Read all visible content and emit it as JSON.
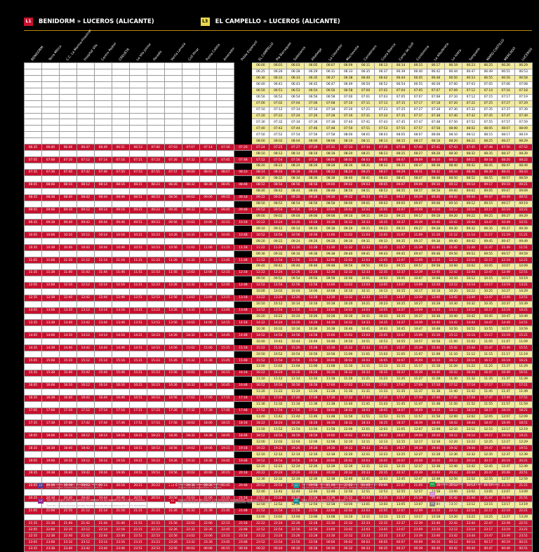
{
  "header": {
    "line1": {
      "badge": "L1",
      "title": "BENIDORM » LUCEROS (ALICANTE)"
    },
    "line3": {
      "badge": "L3",
      "title": "EL CAMPELLO » LUCEROS (ALICANTE)"
    }
  },
  "stations": [
    "BENIDORM",
    "Terra Mítica",
    "C.C. La Marina-Finestrat",
    "Hospital Vila",
    "Centro Pedrer",
    "CREUETA",
    "La Vila Joiosa",
    "Paradís",
    "Venta Lanuza",
    "Coll Pinar",
    "Punta Caleta",
    "Amerador",
    "Poble Espanyol",
    "EL CAMPELLO",
    "Pla Barraques",
    "Salesianos",
    "Alkabega",
    "La Llaurador",
    "Muchavista",
    "Carrabiners",
    "Costa Blanca",
    "Camp de Golf",
    "Condomina",
    "La Albufereta",
    "La Isleta",
    "Sangueta",
    "MARQ-CASTILLO",
    "MERCADO",
    "LUCEROS"
  ],
  "colors": {
    "red": "#c8102e",
    "yellow": "#f3eb9c",
    "accent": "#e9d84a"
  },
  "notes": [
    {
      "code": "L3",
      "color": "#5a3b8f",
      "text": "No circula los sábados, domingos y festivos",
      "sub": "No circula els dissabtes, diumenges i festius"
    },
    {
      "code": "L3",
      "color": "#c8102e",
      "text": "No circula los laborables ni festivos",
      "sub": "No circula els laborables ni festius"
    },
    {
      "code": "L3",
      "color": "#1d8f8f",
      "text": "No circula los sábados, domingos y festivos y laborables sin festivos",
      "sub": "No circula els dissabtes, diumenges, festius i laborables"
    },
    {
      "code": "L4",
      "color": "#8e2b8f",
      "text": "Tren de L1 que efectúa parada facultativa en los apeaderos de L3 los sábados, domingos y festivos",
      "sub": "Tren de L1 que efectua parada facultativa en els baixadors de L3 els dissabtes, diumenges i festius"
    },
    {
      "code": "L1",
      "color": "#c8102e",
      "text": "No circula entre Benidorm y El Campello los sábados, domingos y festivos",
      "sub": "No circula entre Benidorm i El Campello els dissabtes, diumenges i festius"
    },
    {
      "code": "L3",
      "color": "#1d8f8f",
      "text": "Solo circula los sábados, domingos y festivos",
      "sub": "Només circula els dissabtes, diumenges i festius"
    }
  ],
  "connections": [
    {
      "badge": "L2",
      "color": "#2a9d4a",
      "text": "Luceros (Alicante) – Sant Vicent del Raspeig"
    },
    {
      "badge": "L4",
      "color": "#d18ec9",
      "text": "Luceros (Alicante) – Pl. La Coruña"
    },
    {
      "badge": "L9",
      "color": "#888888",
      "text": "Benidorm – Dénia"
    }
  ],
  "timetable": {
    "l3_rows": [
      [
        "06:00",
        "06:01",
        "06:03",
        "06:05",
        "06:07",
        "06:09",
        "06:11",
        "06:13",
        "06:14",
        "06:15",
        "06:17",
        "06:19",
        "06:23",
        "06:25",
        "06:26",
        "06:29",
        "06:31"
      ],
      [
        "06:25",
        "06:26",
        "06:28",
        "06:29",
        "06:31",
        "06:33",
        "06:35",
        "06:37",
        "06:39",
        "06:40",
        "06:42",
        "06:44",
        "06:47",
        "06:49",
        "06:51",
        "06:53",
        "06:56"
      ],
      [
        "06:30",
        "06:31",
        "06:33",
        "06:35",
        "06:37",
        "06:38",
        "06:40",
        "06:42",
        "06:44",
        "06:45",
        "06:48",
        "06:50",
        "06:53",
        "06:55",
        "06:56",
        "06:58",
        "07:00"
      ],
      [
        "06:40",
        "06:41",
        "06:43",
        "06:45",
        "06:47",
        "06:49",
        "06:50",
        "06:52",
        "06:54",
        "06:55",
        "06:58",
        "07:00",
        "07:03",
        "07:05",
        "07:06",
        "07:08",
        "07:10"
      ],
      [
        "06:50",
        "06:51",
        "06:53",
        "06:54",
        "06:56",
        "06:58",
        "07:00",
        "07:02",
        "07:04",
        "07:05",
        "07:07",
        "07:09",
        "07:12",
        "07:14",
        "07:16",
        "07:18",
        "07:20"
      ]
    ],
    "l1_rows": [
      [
        "06:35",
        "06:40",
        "06:46",
        "06:47",
        "06:49",
        "06:51",
        "06:53",
        "07:00",
        "07:03",
        "07:07",
        "07:14",
        "07:16",
        "07:20",
        "07:24",
        "07:25",
        "07:27",
        "07:29",
        "07:31",
        "07:33",
        "07:34",
        "07:36",
        "07:38",
        "07:40",
        "07:41",
        "07:43",
        "07:45",
        "07:48",
        "07:50",
        "07:52"
      ],
      [
        "07:05",
        "07:08",
        "07:10",
        "07:12",
        "07:14",
        "07:16",
        "07:21",
        "07:23",
        "07:26",
        "07:32",
        "07:36",
        "07:45",
        "07:48",
        "07:52",
        "07:54",
        "07:56",
        "07:58",
        "08:00",
        "08:02",
        "08:03",
        "08:05",
        "08:07",
        "08:09",
        "08:10",
        "08:12",
        "08:15",
        "08:18",
        "08:20",
        "08:22"
      ],
      [
        "07:35",
        "07:36",
        "07:40",
        "07:42",
        "07:46",
        "07:50",
        "07:53",
        "07:55",
        "07:57",
        "08:00",
        "08:03",
        "08:07",
        "08:10",
        "08:14",
        "08:16",
        "08:18",
        "08:20",
        "08:22",
        "08:24",
        "08:25",
        "08:27",
        "08:29",
        "08:31",
        "08:32",
        "08:34",
        "08:36",
        "08:39",
        "08:41",
        "08:43"
      ]
    ]
  }
}
